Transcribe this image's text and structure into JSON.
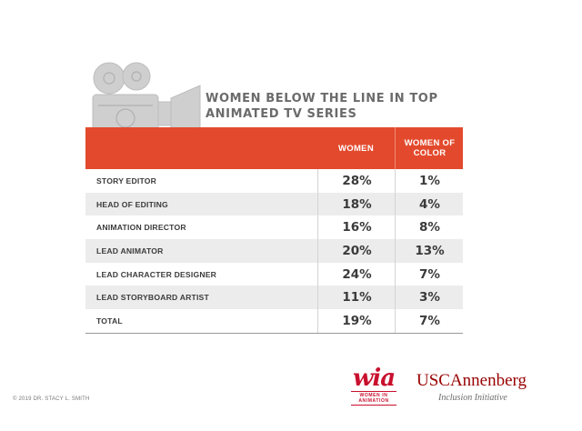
{
  "chart_data": {
    "type": "table",
    "title": "WOMEN BELOW THE LINE IN TOP ANIMATED TV SERIES",
    "columns": [
      "WOMEN",
      "WOMEN OF COLOR"
    ],
    "rows": [
      {
        "label": "STORY EDITOR",
        "women": "28%",
        "women_of_color": "1%"
      },
      {
        "label": "HEAD OF EDITING",
        "women": "18%",
        "women_of_color": "4%"
      },
      {
        "label": "ANIMATION DIRECTOR",
        "women": "16%",
        "women_of_color": "8%"
      },
      {
        "label": "LEAD ANIMATOR",
        "women": "20%",
        "women_of_color": "13%"
      },
      {
        "label": "LEAD CHARACTER DESIGNER",
        "women": "24%",
        "women_of_color": "7%"
      },
      {
        "label": "LEAD STORYBOARD ARTIST",
        "women": "11%",
        "women_of_color": "3%"
      },
      {
        "label": "TOTAL",
        "women": "19%",
        "women_of_color": "7%"
      }
    ],
    "colors": {
      "header": "#e34a2d",
      "row_shade": "#ececec",
      "title": "#6b6b6b"
    }
  },
  "footer": {
    "copyright": "© 2019 DR. STACY L. SMITH",
    "wia_mark": "wia",
    "wia_sub": "WOMEN IN ANIMATION",
    "usc_name": "USCAnnenberg",
    "usc_sub": "Inclusion Initiative"
  },
  "illustration": {
    "icon": "film-camera-icon",
    "color": "#c9c9c9"
  }
}
